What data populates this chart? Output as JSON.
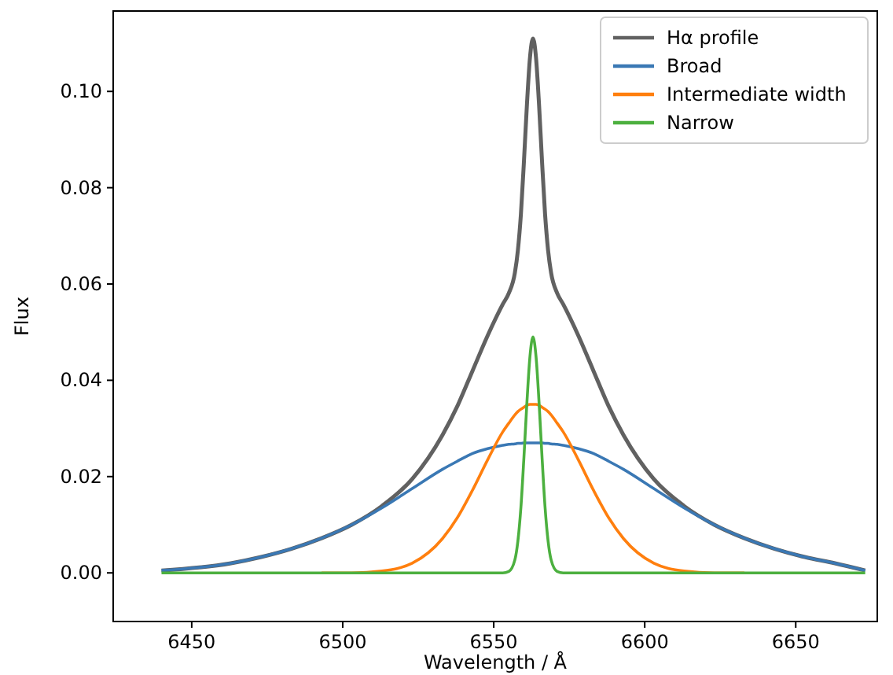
{
  "chart_data": {
    "type": "line",
    "xlabel": "Wavelength / Å",
    "ylabel": "Flux",
    "x": [
      6440,
      6463,
      6473,
      6483,
      6493,
      6503,
      6513,
      6523,
      6533,
      6538,
      6543,
      6548,
      6553,
      6555,
      6557,
      6558,
      6559,
      6560,
      6561,
      6562,
      6563,
      6564,
      6565,
      6566,
      6567,
      6568,
      6569,
      6571,
      6573,
      6578,
      6583,
      6588,
      6593,
      6603,
      6613,
      6623,
      6633,
      6643,
      6653,
      6663,
      6673
    ],
    "series": [
      {
        "name": "Hα profile",
        "color": "#616161",
        "values": [
          0.0005,
          0.002,
          0.0033,
          0.005,
          0.0072,
          0.01,
          0.0139,
          0.0195,
          0.0286,
          0.0347,
          0.042,
          0.0493,
          0.0558,
          0.0581,
          0.0623,
          0.067,
          0.0745,
          0.0854,
          0.0973,
          0.107,
          0.111,
          0.107,
          0.0973,
          0.0854,
          0.0745,
          0.067,
          0.0623,
          0.0581,
          0.0558,
          0.0493,
          0.042,
          0.0347,
          0.0286,
          0.0195,
          0.0139,
          0.01,
          0.0072,
          0.005,
          0.0033,
          0.002,
          0.0005
        ]
      },
      {
        "name": "Broad",
        "color": "#3a78b4",
        "values": [
          0.0005,
          0.002,
          0.0033,
          0.005,
          0.0072,
          0.01,
          0.0135,
          0.0175,
          0.0215,
          0.0232,
          0.0248,
          0.0258,
          0.0265,
          0.0267,
          0.0268,
          0.0269,
          0.0269,
          0.027,
          0.027,
          0.027,
          0.027,
          0.027,
          0.027,
          0.027,
          0.0269,
          0.0269,
          0.0268,
          0.0267,
          0.0265,
          0.0258,
          0.0248,
          0.0232,
          0.0215,
          0.0175,
          0.0135,
          0.01,
          0.0072,
          0.005,
          0.0033,
          0.002,
          0.0005
        ]
      },
      {
        "name": "Intermediate width",
        "color": "#ff7f0e",
        "values": [
          null,
          null,
          null,
          null,
          0,
          0,
          0.0004,
          0.002,
          0.0071,
          0.0115,
          0.0172,
          0.0235,
          0.0293,
          0.0311,
          0.0328,
          0.0335,
          0.034,
          0.0344,
          0.0348,
          0.035,
          0.035,
          0.035,
          0.0348,
          0.0344,
          0.034,
          0.0335,
          0.0328,
          0.0311,
          0.0293,
          0.0235,
          0.0172,
          0.0115,
          0.0071,
          0.002,
          0.0004,
          0,
          0,
          null,
          null,
          null,
          null
        ]
      },
      {
        "name": "Narrow",
        "color": "#4cb03f",
        "values": [
          0,
          0,
          0,
          0,
          0,
          0,
          0,
          0,
          0,
          0,
          0,
          0,
          0,
          0.0003,
          0.0027,
          0.0066,
          0.0136,
          0.024,
          0.0355,
          0.045,
          0.049,
          0.045,
          0.0355,
          0.024,
          0.0136,
          0.0066,
          0.0027,
          0.0003,
          0,
          0,
          0,
          0,
          0,
          0,
          0,
          0,
          0,
          0,
          0,
          0,
          0
        ]
      }
    ],
    "xlim": [
      6424,
      6677
    ],
    "ylim": [
      -0.0101,
      0.1167
    ],
    "xticks": [
      6450,
      6500,
      6550,
      6600,
      6650
    ],
    "yticks": [
      {
        "value": 0,
        "label": "0.00"
      },
      {
        "value": 0.02,
        "label": "0.02"
      },
      {
        "value": 0.04,
        "label": "0.04"
      },
      {
        "value": 0.06,
        "label": "0.06"
      },
      {
        "value": 0.08,
        "label": "0.08"
      },
      {
        "value": 0.1,
        "label": "0.10"
      }
    ],
    "legend": "top right",
    "grid": false
  }
}
